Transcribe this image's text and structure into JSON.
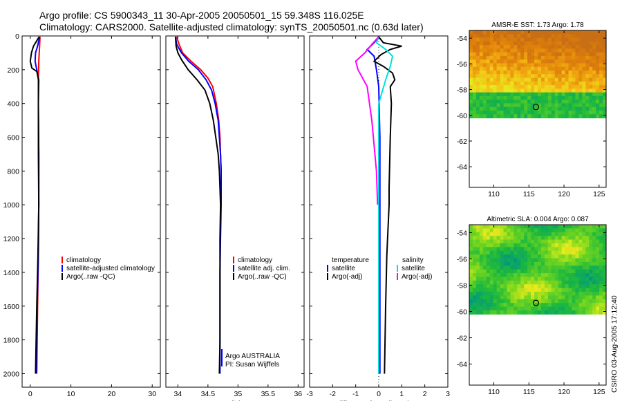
{
  "header": {
    "title_line1": "Argo profile: CS 5900343_11 30-Apr-2005 20050501_15 59.348S 116.025E",
    "title_line2": "Climatology: CARS2000. Satellite-adjusted climatology: synTS_20050501.nc (0.63d later)"
  },
  "colors": {
    "climatology": "#ff0000",
    "satellite": "#0000ff",
    "argo": "#000000",
    "sal_satellite": "#00e0e0",
    "sal_argo": "#ff00ff"
  },
  "chart_data": [
    {
      "type": "line",
      "id": "temperature",
      "xlabel": "temperature",
      "ylabel": "",
      "xlim": [
        -2,
        32
      ],
      "ylim": [
        2080,
        0
      ],
      "xticks": [
        0,
        10,
        20,
        30
      ],
      "yticks": [
        0,
        200,
        400,
        600,
        800,
        1000,
        1200,
        1400,
        1600,
        1800,
        2000
      ],
      "legend": [
        "climatology",
        "satellite-adjusted climatology",
        "Argo(..raw -QC)"
      ],
      "series": [
        {
          "name": "climatology",
          "color": "#ff0000",
          "points": [
            [
              2.4,
              5
            ],
            [
              2.3,
              60
            ],
            [
              2.1,
              150
            ],
            [
              2.0,
              260
            ],
            [
              2.0,
              400
            ],
            [
              2.1,
              700
            ],
            [
              2.1,
              1000
            ],
            [
              2.0,
              1300
            ],
            [
              1.8,
              1600
            ],
            [
              1.6,
              2000
            ]
          ]
        },
        {
          "name": "satellite-adjusted climatology",
          "color": "#0000ff",
          "points": [
            [
              2.3,
              5
            ],
            [
              1.8,
              60
            ],
            [
              1.3,
              100
            ],
            [
              1.2,
              150
            ],
            [
              1.6,
              200
            ],
            [
              2.0,
              260
            ],
            [
              2.0,
              400
            ],
            [
              2.0,
              700
            ],
            [
              2.1,
              1000
            ],
            [
              2.0,
              1300
            ],
            [
              1.7,
              1600
            ],
            [
              1.5,
              2000
            ]
          ]
        },
        {
          "name": "Argo(..raw -QC)",
          "color": "#000000",
          "points": [
            [
              2.2,
              5
            ],
            [
              0.8,
              60
            ],
            [
              0.3,
              100
            ],
            [
              0.0,
              150
            ],
            [
              0.4,
              190
            ],
            [
              1.6,
              210
            ],
            [
              2.1,
              260
            ],
            [
              2.0,
              400
            ],
            [
              2.1,
              700
            ],
            [
              2.1,
              1000
            ],
            [
              1.9,
              1300
            ],
            [
              1.6,
              1600
            ],
            [
              1.3,
              2000
            ]
          ]
        }
      ]
    },
    {
      "type": "line",
      "id": "salinity",
      "xlabel": "salinity",
      "xlim": [
        33.8,
        36.1
      ],
      "ylim": [
        2080,
        0
      ],
      "xticks": [
        34,
        34.5,
        35,
        35.5,
        36
      ],
      "legend": [
        "climatology",
        "satellite adj. clim.",
        "Argo(..raw -QC)"
      ],
      "note_line1": "Argo AUSTRALIA",
      "note_line2": "PI: Susan Wijffels",
      "series": [
        {
          "name": "climatology",
          "color": "#ff0000",
          "points": [
            [
              33.98,
              5
            ],
            [
              34.02,
              50
            ],
            [
              34.08,
              100
            ],
            [
              34.22,
              150
            ],
            [
              34.38,
              200
            ],
            [
              34.5,
              250
            ],
            [
              34.58,
              300
            ],
            [
              34.64,
              400
            ],
            [
              34.68,
              500
            ],
            [
              34.7,
              600
            ],
            [
              34.71,
              700
            ],
            [
              34.72,
              800
            ],
            [
              34.72,
              1000
            ]
          ]
        },
        {
          "name": "satellite adj. clim.",
          "color": "#0000ff",
          "points": [
            [
              33.96,
              5
            ],
            [
              33.98,
              50
            ],
            [
              34.06,
              100
            ],
            [
              34.18,
              150
            ],
            [
              34.34,
              200
            ],
            [
              34.47,
              260
            ],
            [
              34.56,
              320
            ],
            [
              34.62,
              400
            ],
            [
              34.67,
              500
            ],
            [
              34.69,
              600
            ],
            [
              34.71,
              700
            ],
            [
              34.72,
              800
            ],
            [
              34.72,
              1000
            ],
            [
              34.71,
              1200
            ],
            [
              34.7,
              1400
            ],
            [
              34.7,
              1700
            ],
            [
              34.7,
              2000
            ]
          ]
        },
        {
          "name": "Argo(..raw -QC)",
          "color": "#000000",
          "points": [
            [
              33.96,
              5
            ],
            [
              33.97,
              60
            ],
            [
              34.0,
              100
            ],
            [
              34.06,
              140
            ],
            [
              34.17,
              200
            ],
            [
              34.32,
              260
            ],
            [
              34.45,
              320
            ],
            [
              34.53,
              400
            ],
            [
              34.59,
              500
            ],
            [
              34.63,
              600
            ],
            [
              34.67,
              700
            ],
            [
              34.69,
              800
            ],
            [
              34.7,
              900
            ],
            [
              34.71,
              1000
            ],
            [
              34.7,
              1200
            ],
            [
              34.7,
              1500
            ],
            [
              34.7,
              1800
            ],
            [
              34.69,
              2000
            ]
          ]
        }
      ]
    },
    {
      "type": "line",
      "id": "difference",
      "xlabel": "difference from climatology",
      "xlim": [
        -3,
        3
      ],
      "ylim": [
        2080,
        0
      ],
      "xticks": [
        -3,
        -2,
        -1,
        0,
        1,
        2,
        3
      ],
      "legend_left": [
        "temperature",
        "satellite",
        "Argo(-adj)"
      ],
      "legend_right": [
        "salinity",
        "satellite",
        "Argo(-adj)"
      ],
      "series": [
        {
          "name": "temperature satellite",
          "color": "#0000ff",
          "points": [
            [
              0,
              5
            ],
            [
              -0.2,
              40
            ],
            [
              -0.5,
              80
            ],
            [
              -0.2,
              120
            ],
            [
              -0.1,
              200
            ],
            [
              0,
              300
            ],
            [
              0.05,
              600
            ],
            [
              0.05,
              1000
            ],
            [
              0.05,
              1500
            ],
            [
              0.05,
              2000
            ]
          ]
        },
        {
          "name": "temperature Argo(-adj)",
          "color": "#000000",
          "points": [
            [
              0,
              5
            ],
            [
              0.2,
              40
            ],
            [
              1.0,
              60
            ],
            [
              0.5,
              80
            ],
            [
              0.1,
              110
            ],
            [
              -0.2,
              150
            ],
            [
              0.2,
              180
            ],
            [
              0.6,
              220
            ],
            [
              0.7,
              260
            ],
            [
              0.5,
              300
            ],
            [
              0.55,
              400
            ],
            [
              0.5,
              600
            ],
            [
              0.45,
              900
            ],
            [
              0.45,
              1000
            ],
            [
              0.35,
              1300
            ],
            [
              0.3,
              1600
            ],
            [
              0.25,
              2000
            ]
          ]
        },
        {
          "name": "salinity satellite",
          "color": "#00e0e0",
          "points": [
            [
              0,
              5
            ],
            [
              -0.1,
              40
            ],
            [
              0.3,
              80
            ],
            [
              0.6,
              120
            ],
            [
              0.5,
              180
            ],
            [
              0.3,
              260
            ],
            [
              0.0,
              400
            ],
            [
              0.0,
              1000
            ],
            [
              0.0,
              2000
            ]
          ]
        },
        {
          "name": "salinity Argo(-adj)",
          "color": "#ff00ff",
          "points": [
            [
              0,
              5
            ],
            [
              -0.3,
              50
            ],
            [
              -0.6,
              100
            ],
            [
              -1.0,
              150
            ],
            [
              -0.9,
              200
            ],
            [
              -0.5,
              300
            ],
            [
              -0.3,
              500
            ],
            [
              -0.1,
              800
            ],
            [
              -0.05,
              1000
            ]
          ]
        }
      ]
    },
    {
      "type": "heatmap",
      "id": "sst_map",
      "title": "AMSR-E SST: 1.73 Argo: 1.78",
      "xlim": [
        106.5,
        126
      ],
      "ylim": [
        -65.6,
        -53.4
      ],
      "xticks": [
        110,
        115,
        120,
        125
      ],
      "yticks": [
        -54,
        -56,
        -58,
        -60,
        -62,
        -64
      ],
      "marker": [
        116.0,
        -59.35
      ],
      "data_lat_range": [
        -60.2,
        -53.4
      ]
    },
    {
      "type": "heatmap",
      "id": "sla_map",
      "title": "Altimetric SLA: 0.004 Argo: 0.087",
      "xlim": [
        106.5,
        126
      ],
      "ylim": [
        -65.6,
        -53.4
      ],
      "xticks": [
        110,
        115,
        120,
        125
      ],
      "yticks": [
        -54,
        -56,
        -58,
        -60,
        -62,
        -64
      ],
      "marker": [
        116.0,
        -59.35
      ],
      "data_lat_range": [
        -60.2,
        -53.4
      ]
    }
  ],
  "footer": {
    "stamp": "CSIRO 03-Aug-2005 17:12:40"
  }
}
